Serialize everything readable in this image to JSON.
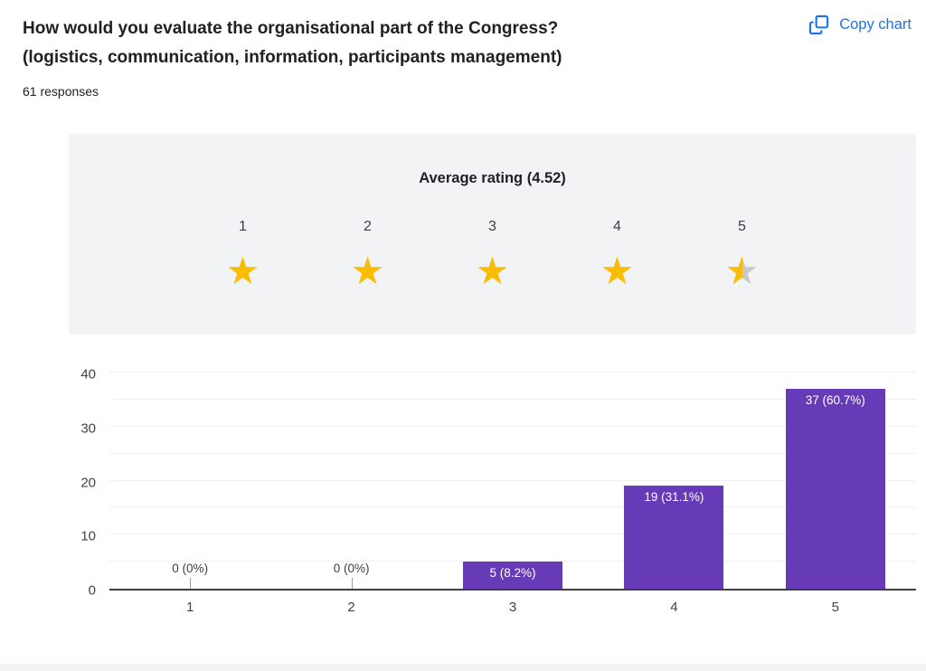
{
  "header": {
    "title_line1": "How would you evaluate the organisational part of the Congress?",
    "title_line2": "(logistics, communication, information, participants management)",
    "responses": "61 responses",
    "copy_button": "Copy chart",
    "copy_button_color": "#1a73e8"
  },
  "rating": {
    "title": "Average rating (4.52)",
    "average": 4.52,
    "scale": [
      "1",
      "2",
      "3",
      "4",
      "5"
    ],
    "full_stars": 4,
    "partial_fill": 0.52,
    "star_color": "#fbbc04",
    "star_empty_color": "#c8c8c8",
    "panel_color": "#f2f3f5"
  },
  "chart_data": {
    "type": "bar",
    "categories": [
      "1",
      "2",
      "3",
      "4",
      "5"
    ],
    "values": [
      0,
      0,
      5,
      19,
      37
    ],
    "bar_labels": [
      "0 (0%)",
      "0 (0%)",
      "5 (8.2%)",
      "19 (31.1%)",
      "37 (60.7%)"
    ],
    "title": "",
    "xlabel": "",
    "ylabel": "",
    "ylim": [
      0,
      40
    ],
    "yticks": [
      0,
      10,
      20,
      30,
      40
    ],
    "grid": true,
    "grid_step": 5,
    "legend": false,
    "bar_color": "#673ab7",
    "axis_color": "#3c4043",
    "gridline_color": "#f0f0f0"
  }
}
